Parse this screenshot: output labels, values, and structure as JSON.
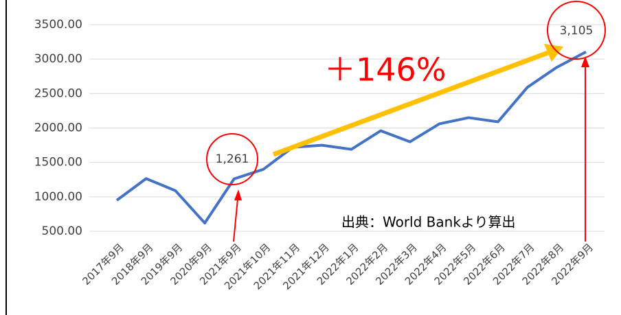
{
  "chart_data": {
    "type": "line",
    "categories": [
      "2017年9月",
      "2018年9月",
      "2019年9月",
      "2020年9月",
      "2021年9月",
      "2021年10月",
      "2021年11月",
      "2021年12月",
      "2022年1月",
      "2022年2月",
      "2022年3月",
      "2022年4月",
      "2022年5月",
      "2022年6月",
      "2022年7月",
      "2022年8月",
      "2022年9月"
    ],
    "series": [
      {
        "name": "",
        "color": "#4472c4",
        "values": [
          950,
          1265,
          1090,
          620,
          1261,
          1400,
          1720,
          1750,
          1690,
          1960,
          1800,
          2060,
          2150,
          2090,
          2590,
          2880,
          3105
        ]
      }
    ],
    "ylim": [
      500,
      3500
    ],
    "yticks": [
      {
        "value": 500,
        "label": "500.00"
      },
      {
        "value": 1000,
        "label": "1000.00"
      },
      {
        "value": 1500,
        "label": "1500.00"
      },
      {
        "value": 2000,
        "label": "2000.00"
      },
      {
        "value": 2500,
        "label": "2500.00"
      },
      {
        "value": 3000,
        "label": "3000.00"
      },
      {
        "value": 3500,
        "label": "3500.00"
      }
    ],
    "grid": true,
    "annotations": [
      "1,261",
      "3,105",
      "＋146%",
      "出典：World Bankより算出"
    ]
  }
}
